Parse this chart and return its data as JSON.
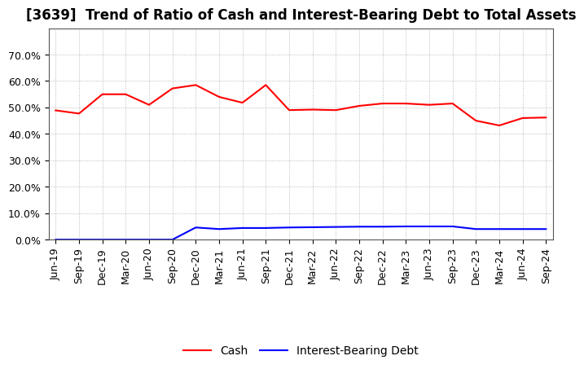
{
  "title": "[3639]  Trend of Ratio of Cash and Interest-Bearing Debt to Total Assets",
  "x_labels": [
    "Jun-19",
    "Sep-19",
    "Dec-19",
    "Mar-20",
    "Jun-20",
    "Sep-20",
    "Dec-20",
    "Mar-21",
    "Jun-21",
    "Sep-21",
    "Dec-21",
    "Mar-22",
    "Jun-22",
    "Sep-22",
    "Dec-22",
    "Mar-23",
    "Jun-23",
    "Sep-23",
    "Dec-23",
    "Mar-24",
    "Jun-24",
    "Sep-24"
  ],
  "cash": [
    0.489,
    0.477,
    0.55,
    0.55,
    0.51,
    0.572,
    0.585,
    0.54,
    0.518,
    0.585,
    0.49,
    0.492,
    0.49,
    0.506,
    0.515,
    0.515,
    0.51,
    0.515,
    0.45,
    0.432,
    0.46,
    0.462
  ],
  "debt": [
    0.0,
    0.0,
    0.0,
    0.0,
    0.0,
    0.0,
    0.046,
    0.04,
    0.044,
    0.044,
    0.046,
    0.047,
    0.048,
    0.049,
    0.049,
    0.05,
    0.05,
    0.05,
    0.04,
    0.04,
    0.04,
    0.04
  ],
  "cash_color": "#ff0000",
  "debt_color": "#0000ff",
  "ylim": [
    0.0,
    0.8
  ],
  "yticks": [
    0.0,
    0.1,
    0.2,
    0.3,
    0.4,
    0.5,
    0.6,
    0.7
  ],
  "grid_color": "#aaaaaa",
  "background_color": "#ffffff",
  "legend_cash": "Cash",
  "legend_debt": "Interest-Bearing Debt",
  "title_fontsize": 12,
  "axis_fontsize": 9,
  "legend_fontsize": 10
}
